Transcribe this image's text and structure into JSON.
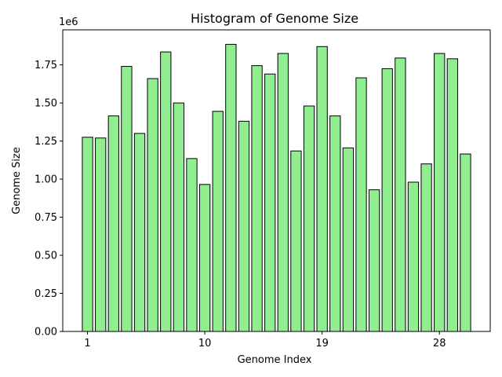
{
  "chart_data": {
    "type": "bar",
    "title": "Histogram of Genome Size",
    "xlabel": "Genome Index",
    "ylabel": "Genome Size",
    "offset_label": "1e6",
    "bar_color": "#90ee90",
    "edge_color": "#000000",
    "grid": false,
    "x": [
      1,
      2,
      3,
      4,
      5,
      6,
      7,
      8,
      9,
      10,
      11,
      12,
      13,
      14,
      15,
      16,
      17,
      18,
      19,
      20,
      21,
      22,
      23,
      24,
      25,
      26,
      27,
      28,
      29,
      30
    ],
    "values": [
      1.275,
      1.27,
      1.415,
      1.74,
      1.3,
      1.66,
      1.835,
      1.5,
      1.135,
      0.965,
      1.445,
      1.885,
      1.38,
      1.745,
      1.69,
      1.825,
      1.185,
      1.48,
      1.87,
      1.415,
      1.205,
      1.665,
      0.93,
      1.725,
      1.795,
      0.98,
      1.1,
      1.825,
      1.79,
      1.165
    ],
    "value_scale": 1000000,
    "xlim": [
      -0.9,
      31.9
    ],
    "ylim": [
      0,
      1.98
    ],
    "x_ticks": [
      1,
      10,
      19,
      28
    ],
    "x_tick_labels": [
      "1",
      "10",
      "19",
      "28"
    ],
    "y_ticks": [
      0,
      0.25,
      0.5,
      0.75,
      1.0,
      1.25,
      1.5,
      1.75
    ],
    "y_tick_labels": [
      "0.00",
      "0.25",
      "0.50",
      "0.75",
      "1.00",
      "1.25",
      "1.50",
      "1.75"
    ]
  }
}
